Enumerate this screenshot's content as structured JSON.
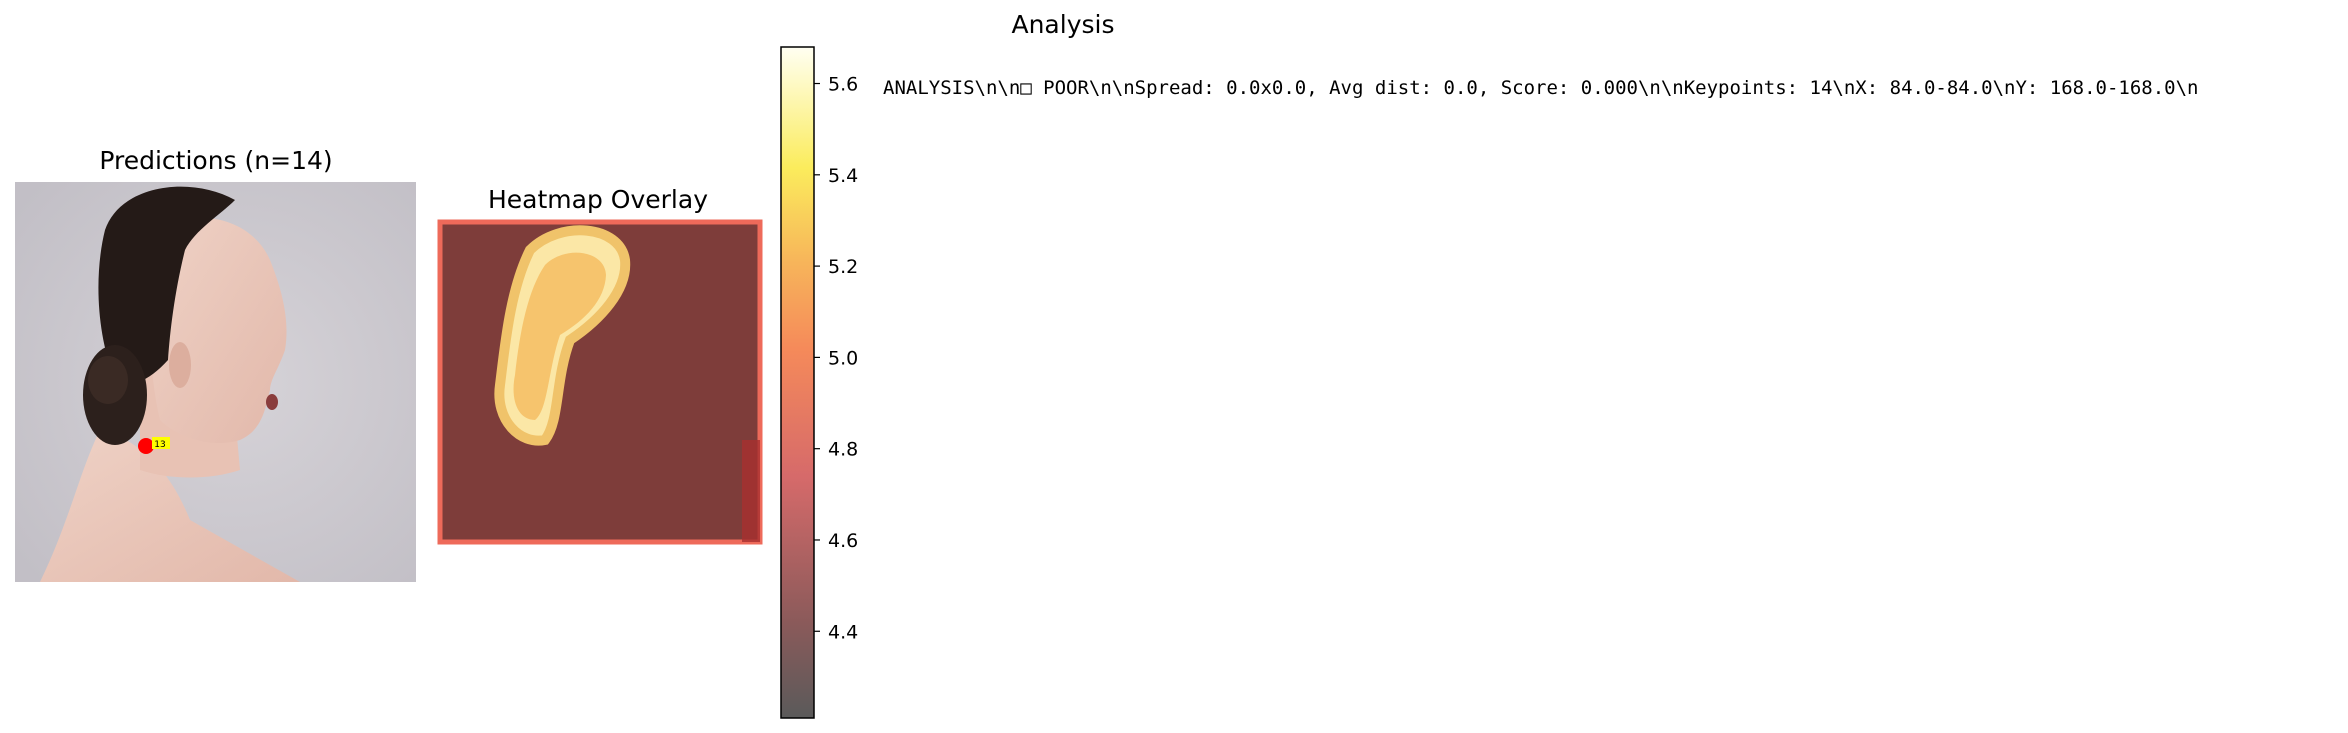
{
  "chart_data": [
    {
      "type": "scatter",
      "title": "Predictions (n=14)",
      "keypoint_count": 14,
      "colors": {
        "keypoint_primary": "#ff0000",
        "keypoint_secondary": "#ffff00"
      }
    },
    {
      "type": "heatmap",
      "title": "Heatmap Overlay",
      "colorbar": {
        "ticks": [
          "4.4",
          "4.6",
          "4.8",
          "5.0",
          "5.2",
          "5.4",
          "5.6"
        ],
        "range": [
          4.21,
          5.68
        ],
        "colormap": "hot",
        "alpha": 0.6
      }
    },
    {
      "type": "table",
      "title": "Analysis",
      "text": "ANALYSIS\\n\\n□ POOR\\n\\nSpread: 0.0x0.0, Avg dist: 0.0, Score: 0.000\\n\\nKeypoints: 14\\nX: 84.0-84.0\\nY: 168.0-168.0\\n"
    }
  ]
}
